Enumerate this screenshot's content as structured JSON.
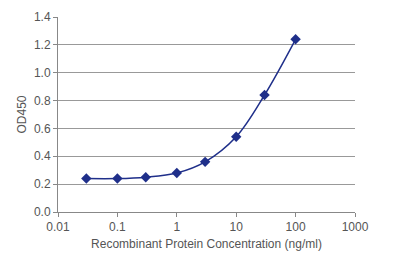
{
  "chart_data": {
    "type": "line",
    "x_label": "Recombinant Protein Concentration (ng/ml)",
    "y_label": "OD450",
    "x": [
      0.03,
      0.1,
      0.3,
      1,
      3,
      10,
      30,
      100
    ],
    "values": [
      0.24,
      0.24,
      0.25,
      0.28,
      0.36,
      0.54,
      0.84,
      1.24
    ],
    "color": "#1f2f8a",
    "marker": "diamond",
    "line_style": "solid",
    "log": "x",
    "grid": true,
    "xlim": [
      0.01,
      1000
    ],
    "xticks": [
      0.01,
      0.1,
      1,
      10,
      100,
      1000
    ],
    "ylim": [
      0,
      1.4
    ],
    "yticks": [
      {
        "value": 0,
        "label": "0.0"
      },
      0.2,
      0.4,
      0.6,
      0.8,
      {
        "value": 1,
        "label": "1.0"
      },
      1.2,
      1.4
    ]
  }
}
